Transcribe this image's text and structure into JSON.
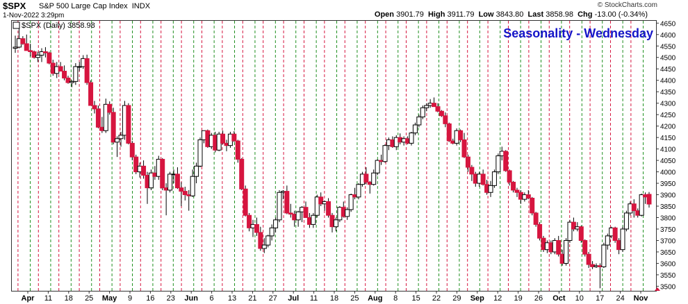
{
  "header": {
    "symbol": "$SPX",
    "description": "S&P 500 Large Cap Index",
    "exchange": "INDX",
    "datetime": "1-Nov-2022 3:29pm",
    "open_label": "Open",
    "open": "3901.79",
    "high_label": "High",
    "high": "3911.79",
    "low_label": "Low",
    "low": "3843.80",
    "last_label": "Last",
    "last": "3858.98",
    "chg_label": "Chg",
    "chg": "-13.00 (-0.34%)",
    "copyright": "© StockCharts.com"
  },
  "legend": {
    "text": "$SPX (Daily) 3858.98"
  },
  "chart_data": {
    "type": "candlestick",
    "title": "Seasonality - Wednesday",
    "ylim": [
      3480,
      4660
    ],
    "y_ticks": [
      3500,
      3550,
      3600,
      3650,
      3700,
      3750,
      3800,
      3850,
      3900,
      3950,
      4000,
      4050,
      4100,
      4150,
      4200,
      4250,
      4300,
      4350,
      4400,
      4450,
      4500,
      4550,
      4600,
      4650
    ],
    "x_labels": [
      "Apr",
      "11",
      "18",
      "25",
      "May",
      "9",
      "16",
      "23",
      "Jun",
      "6",
      "13",
      "21",
      "27",
      "Jul",
      "11",
      "18",
      "25",
      "Aug",
      "8",
      "15",
      "22",
      "29",
      "Sep",
      "12",
      "19",
      "26",
      "Oct",
      "10",
      "17",
      "24",
      "Nov"
    ],
    "month_labels": [
      "Apr",
      "May",
      "Jun",
      "Jul",
      "Aug",
      "Sep",
      "Oct",
      "Nov"
    ],
    "grid": "vertical dashed lines: red = week start, green = Wednesday",
    "colors": {
      "up": "#ffffff",
      "down": "#d6153f",
      "outline": "#000000",
      "red_grid": "#d6153f",
      "green_grid": "#1f8f1f",
      "title": "#1515c8"
    },
    "ohlc": [
      [
        4540,
        4595,
        4520,
        4545
      ],
      [
        4545,
        4637,
        4540,
        4582
      ],
      [
        4582,
        4593,
        4555,
        4560
      ],
      [
        4560,
        4600,
        4530,
        4530
      ],
      [
        4530,
        4560,
        4505,
        4525
      ],
      [
        4525,
        4530,
        4495,
        4500
      ],
      [
        4500,
        4525,
        4480,
        4510
      ],
      [
        4510,
        4540,
        4480,
        4525
      ],
      [
        4525,
        4545,
        4500,
        4520
      ],
      [
        4520,
        4525,
        4470,
        4475
      ],
      [
        4475,
        4490,
        4420,
        4430
      ],
      [
        4430,
        4480,
        4410,
        4460
      ],
      [
        4460,
        4480,
        4440,
        4440
      ],
      [
        4440,
        4465,
        4400,
        4410
      ],
      [
        4410,
        4420,
        4385,
        4390
      ],
      [
        4390,
        4400,
        4370,
        4395
      ],
      [
        4395,
        4475,
        4380,
        4460
      ],
      [
        4460,
        4480,
        4440,
        4460
      ],
      [
        4460,
        4510,
        4450,
        4495
      ],
      [
        4495,
        4512,
        4380,
        4390
      ],
      [
        4390,
        4400,
        4290,
        4290
      ],
      [
        4290,
        4310,
        4255,
        4275
      ],
      [
        4275,
        4290,
        4190,
        4195
      ],
      [
        4195,
        4240,
        4170,
        4180
      ],
      [
        4180,
        4320,
        4170,
        4295
      ],
      [
        4295,
        4308,
        4250,
        4260
      ],
      [
        4260,
        4280,
        4120,
        4130
      ],
      [
        4130,
        4155,
        4065,
        4145
      ],
      [
        4145,
        4175,
        4110,
        4160
      ],
      [
        4160,
        4310,
        4140,
        4290
      ],
      [
        4290,
        4300,
        4120,
        4125
      ],
      [
        4125,
        4135,
        4050,
        4065
      ],
      [
        4065,
        4075,
        3990,
        4000
      ],
      [
        4000,
        4040,
        3975,
        4025
      ],
      [
        4025,
        4050,
        3970,
        3985
      ],
      [
        3985,
        4000,
        3860,
        3930
      ],
      [
        3930,
        4010,
        3920,
        3995
      ],
      [
        3995,
        4025,
        3965,
        3980
      ],
      [
        3980,
        4070,
        3965,
        4055
      ],
      [
        4055,
        4060,
        3920,
        3930
      ],
      [
        3930,
        3950,
        3810,
        3920
      ],
      [
        3920,
        4000,
        3910,
        3990
      ],
      [
        3990,
        4010,
        3950,
        3990
      ],
      [
        3990,
        4020,
        3925,
        3930
      ],
      [
        3930,
        3955,
        3850,
        3915
      ],
      [
        3915,
        3935,
        3875,
        3900
      ],
      [
        3900,
        3920,
        3830,
        3895
      ],
      [
        3895,
        4010,
        3890,
        3980
      ],
      [
        3980,
        4040,
        3950,
        4025
      ],
      [
        4025,
        4150,
        4020,
        4140
      ],
      [
        4140,
        4180,
        4125,
        4180
      ],
      [
        4180,
        4185,
        4105,
        4110
      ],
      [
        4110,
        4170,
        4100,
        4160
      ],
      [
        4160,
        4175,
        4085,
        4095
      ],
      [
        4095,
        4175,
        4090,
        4165
      ],
      [
        4165,
        4180,
        4120,
        4125
      ],
      [
        4125,
        4140,
        4090,
        4115
      ],
      [
        4115,
        4175,
        4105,
        4165
      ],
      [
        4165,
        4178,
        4130,
        4135
      ],
      [
        4135,
        4140,
        4040,
        4055
      ],
      [
        4055,
        4060,
        3920,
        3925
      ],
      [
        3925,
        3940,
        3805,
        3810
      ],
      [
        3810,
        3820,
        3740,
        3755
      ],
      [
        3755,
        3790,
        3715,
        3770
      ],
      [
        3770,
        3800,
        3720,
        3735
      ],
      [
        3735,
        3760,
        3655,
        3665
      ],
      [
        3665,
        3710,
        3645,
        3680
      ],
      [
        3680,
        3725,
        3670,
        3720
      ],
      [
        3720,
        3770,
        3700,
        3755
      ],
      [
        3755,
        3800,
        3735,
        3790
      ],
      [
        3790,
        3920,
        3780,
        3910
      ],
      [
        3910,
        3920,
        3880,
        3915
      ],
      [
        3915,
        3940,
        3815,
        3820
      ],
      [
        3820,
        3860,
        3800,
        3815
      ],
      [
        3815,
        3830,
        3760,
        3790
      ],
      [
        3790,
        3830,
        3760,
        3825
      ],
      [
        3825,
        3850,
        3780,
        3845
      ],
      [
        3845,
        3870,
        3800,
        3800
      ],
      [
        3800,
        3820,
        3755,
        3770
      ],
      [
        3770,
        3820,
        3755,
        3810
      ],
      [
        3810,
        3900,
        3800,
        3890
      ],
      [
        3890,
        3910,
        3850,
        3860
      ],
      [
        3860,
        3875,
        3830,
        3870
      ],
      [
        3870,
        3885,
        3800,
        3810
      ],
      [
        3810,
        3820,
        3735,
        3760
      ],
      [
        3760,
        3800,
        3740,
        3790
      ],
      [
        3790,
        3850,
        3780,
        3845
      ],
      [
        3845,
        3870,
        3800,
        3805
      ],
      [
        3805,
        3845,
        3790,
        3835
      ],
      [
        3835,
        3905,
        3825,
        3900
      ],
      [
        3900,
        3930,
        3880,
        3890
      ],
      [
        3890,
        3950,
        3880,
        3945
      ],
      [
        3945,
        4000,
        3935,
        3990
      ],
      [
        3990,
        4020,
        3945,
        3955
      ],
      [
        3955,
        3960,
        3905,
        3945
      ],
      [
        3945,
        4010,
        3940,
        3995
      ],
      [
        3995,
        4055,
        3985,
        4050
      ],
      [
        4050,
        4075,
        4030,
        4045
      ],
      [
        4045,
        4120,
        4040,
        4115
      ],
      [
        4115,
        4150,
        4095,
        4140
      ],
      [
        4140,
        4155,
        4105,
        4110
      ],
      [
        4110,
        4160,
        4095,
        4150
      ],
      [
        4150,
        4168,
        4120,
        4130
      ],
      [
        4130,
        4155,
        4115,
        4145
      ],
      [
        4145,
        4155,
        4120,
        4125
      ],
      [
        4125,
        4175,
        4115,
        4170
      ],
      [
        4170,
        4215,
        4160,
        4205
      ],
      [
        4205,
        4250,
        4195,
        4240
      ],
      [
        4240,
        4290,
        4230,
        4280
      ],
      [
        4280,
        4300,
        4265,
        4290
      ],
      [
        4290,
        4318,
        4280,
        4300
      ],
      [
        4300,
        4325,
        4290,
        4285
      ],
      [
        4285,
        4300,
        4260,
        4265
      ],
      [
        4265,
        4270,
        4240,
        4245
      ],
      [
        4245,
        4260,
        4195,
        4210
      ],
      [
        4210,
        4215,
        4130,
        4135
      ],
      [
        4135,
        4145,
        4120,
        4125
      ],
      [
        4125,
        4190,
        4115,
        4180
      ],
      [
        4180,
        4185,
        4130,
        4140
      ],
      [
        4140,
        4170,
        4060,
        4065
      ],
      [
        4065,
        4075,
        4000,
        4020
      ],
      [
        4020,
        4030,
        3960,
        3990
      ],
      [
        3990,
        4000,
        3935,
        3950
      ],
      [
        3950,
        4000,
        3935,
        3990
      ],
      [
        3990,
        4010,
        3940,
        3945
      ],
      [
        3945,
        3965,
        3900,
        3910
      ],
      [
        3910,
        3960,
        3890,
        3940
      ],
      [
        3940,
        4010,
        3930,
        4000
      ],
      [
        4000,
        4080,
        3990,
        4070
      ],
      [
        4070,
        4110,
        4050,
        4090
      ],
      [
        4090,
        4095,
        4000,
        4005
      ],
      [
        4005,
        4010,
        3940,
        3955
      ],
      [
        3955,
        3960,
        3910,
        3920
      ],
      [
        3920,
        3930,
        3890,
        3910
      ],
      [
        3910,
        3920,
        3860,
        3880
      ],
      [
        3880,
        3910,
        3870,
        3900
      ],
      [
        3900,
        3920,
        3880,
        3885
      ],
      [
        3885,
        3890,
        3810,
        3820
      ],
      [
        3820,
        3825,
        3760,
        3770
      ],
      [
        3770,
        3780,
        3700,
        3710
      ],
      [
        3710,
        3720,
        3650,
        3660
      ],
      [
        3660,
        3700,
        3645,
        3690
      ],
      [
        3690,
        3700,
        3640,
        3650
      ],
      [
        3650,
        3710,
        3640,
        3700
      ],
      [
        3700,
        3720,
        3630,
        3640
      ],
      [
        3640,
        3660,
        3590,
        3600
      ],
      [
        3600,
        3710,
        3590,
        3700
      ],
      [
        3700,
        3790,
        3690,
        3780
      ],
      [
        3780,
        3800,
        3740,
        3750
      ],
      [
        3750,
        3780,
        3740,
        3760
      ],
      [
        3760,
        3765,
        3690,
        3700
      ],
      [
        3700,
        3705,
        3630,
        3640
      ],
      [
        3640,
        3650,
        3580,
        3595
      ],
      [
        3595,
        3610,
        3575,
        3585
      ],
      [
        3585,
        3600,
        3580,
        3590
      ],
      [
        3590,
        3600,
        3491,
        3585
      ],
      [
        3585,
        3690,
        3580,
        3680
      ],
      [
        3680,
        3730,
        3660,
        3720
      ],
      [
        3720,
        3760,
        3710,
        3755
      ],
      [
        3755,
        3760,
        3690,
        3700
      ],
      [
        3700,
        3710,
        3640,
        3660
      ],
      [
        3660,
        3760,
        3650,
        3750
      ],
      [
        3750,
        3830,
        3740,
        3820
      ],
      [
        3820,
        3870,
        3810,
        3860
      ],
      [
        3860,
        3880,
        3800,
        3830
      ],
      [
        3830,
        3840,
        3800,
        3810
      ],
      [
        3810,
        3905,
        3805,
        3900
      ],
      [
        3900,
        3910,
        3860,
        3890
      ],
      [
        3901.79,
        3911.79,
        3843.8,
        3858.98
      ]
    ]
  }
}
